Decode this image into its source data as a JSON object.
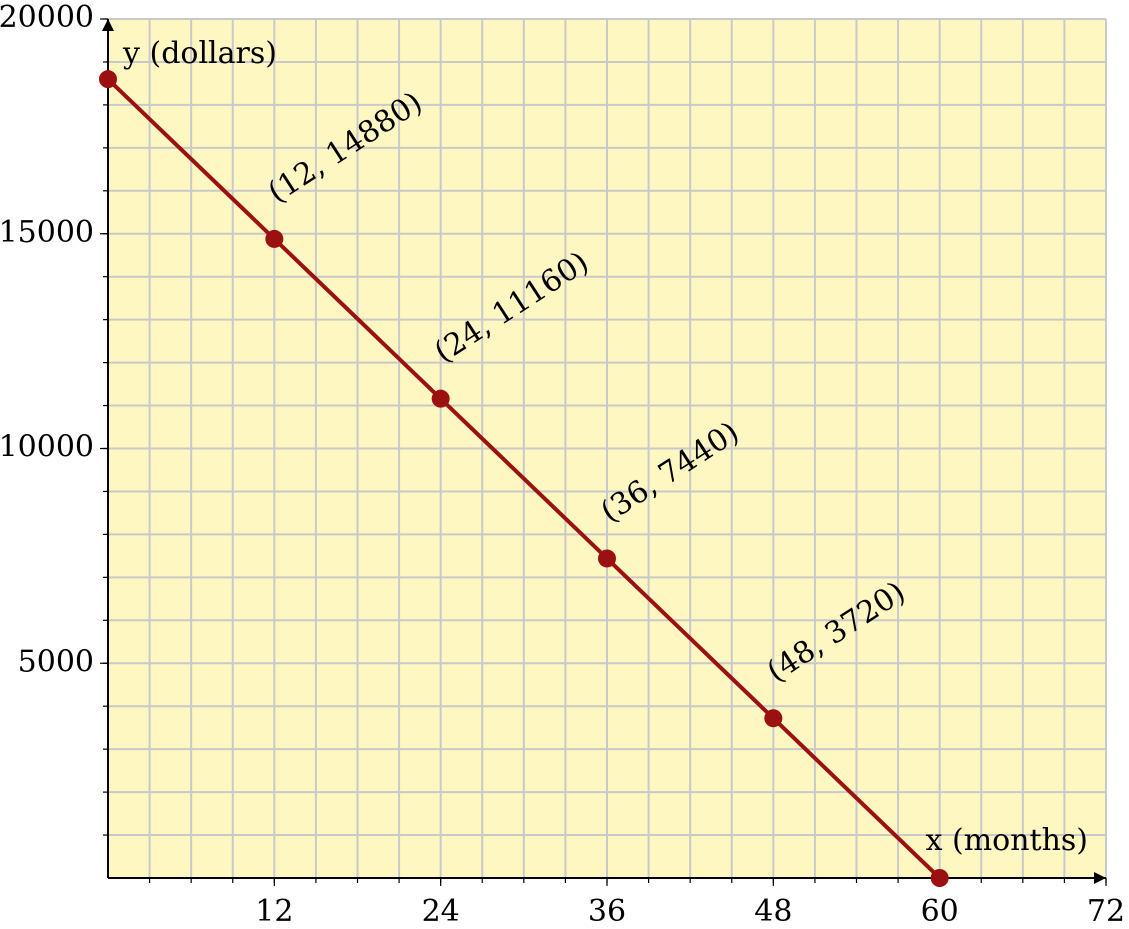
{
  "chart_data": {
    "type": "line",
    "x": [
      0,
      12,
      24,
      36,
      48,
      60
    ],
    "series": [
      {
        "color": "#9b1111",
        "values": [
          18600,
          14880,
          11160,
          7440,
          3720,
          0
        ],
        "value_labels": [
          null,
          "(12, 14880)",
          "(24, 11160)",
          "(36, 7440)",
          "(48, 3720)",
          null
        ]
      }
    ],
    "xlabel": "x (months)",
    "ylabel": "y (dollars)",
    "xlim": [
      0,
      72
    ],
    "xticks": [
      12,
      24,
      36,
      48,
      60,
      72
    ],
    "ylim": [
      0,
      20000
    ],
    "yticks": [
      5000,
      10000,
      15000,
      20000
    ],
    "grid": true,
    "x_minor_step": 3,
    "y_minor_step": 1000,
    "background": "#fef7c2",
    "grid_color": "#c9c9c9"
  }
}
